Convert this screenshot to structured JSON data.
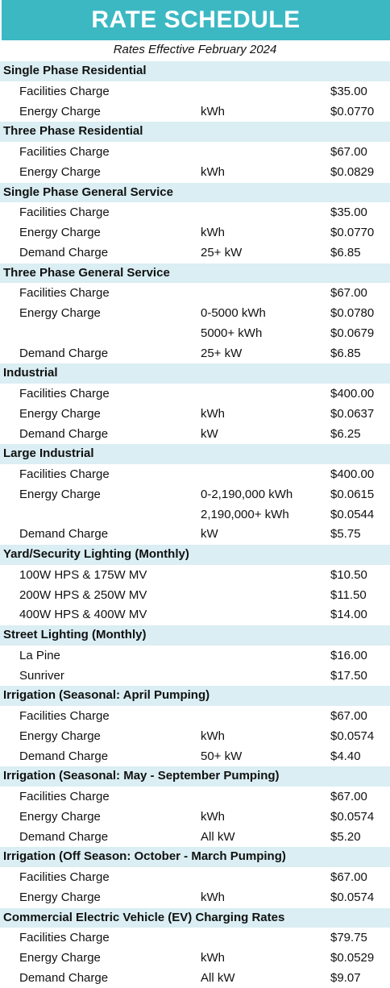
{
  "title": "RATE SCHEDULE",
  "subtitle": "Rates Effective February 2024",
  "sections": [
    {
      "name": "Single Phase Residential",
      "rows": [
        {
          "label": "Facilities Charge",
          "unit": "",
          "price": "$35.00"
        },
        {
          "label": "Energy Charge",
          "unit": "kWh",
          "price": "$0.0770"
        }
      ]
    },
    {
      "name": "Three Phase Residential",
      "rows": [
        {
          "label": "Facilities Charge",
          "unit": "",
          "price": "$67.00"
        },
        {
          "label": "Energy Charge",
          "unit": "kWh",
          "price": "$0.0829"
        }
      ]
    },
    {
      "name": "Single Phase General Service",
      "rows": [
        {
          "label": "Facilities Charge",
          "unit": "",
          "price": "$35.00"
        },
        {
          "label": "Energy Charge",
          "unit": "kWh",
          "price": "$0.0770"
        },
        {
          "label": "Demand Charge",
          "unit": "25+ kW",
          "price": "$6.85"
        }
      ]
    },
    {
      "name": "Three Phase General Service",
      "rows": [
        {
          "label": "Facilities Charge",
          "unit": "",
          "price": "$67.00"
        },
        {
          "label": "Energy Charge",
          "unit": "0-5000 kWh",
          "price": "$0.0780"
        },
        {
          "label": "",
          "unit": "5000+ kWh",
          "price": "$0.0679"
        },
        {
          "label": "Demand Charge",
          "unit": "25+ kW",
          "price": "$6.85"
        }
      ]
    },
    {
      "name": "Industrial",
      "rows": [
        {
          "label": "Facilities Charge",
          "unit": "",
          "price": "$400.00"
        },
        {
          "label": "Energy Charge",
          "unit": "kWh",
          "price": "$0.0637"
        },
        {
          "label": "Demand Charge",
          "unit": "kW",
          "price": "$6.25"
        }
      ]
    },
    {
      "name": "Large Industrial",
      "rows": [
        {
          "label": "Facilities Charge",
          "unit": "",
          "price": "$400.00"
        },
        {
          "label": "Energy Charge",
          "unit": "0-2,190,000 kWh",
          "price": "$0.0615"
        },
        {
          "label": "",
          "unit": "2,190,000+ kWh",
          "price": "$0.0544"
        },
        {
          "label": "Demand Charge",
          "unit": "kW",
          "price": "$5.75"
        }
      ]
    },
    {
      "name": "Yard/Security Lighting (Monthly)",
      "rows": [
        {
          "label": "100W HPS & 175W MV",
          "unit": "",
          "price": "$10.50"
        },
        {
          "label": "200W HPS & 250W MV",
          "unit": "",
          "price": "$11.50"
        },
        {
          "label": "400W HPS & 400W MV",
          "unit": "",
          "price": "$14.00"
        }
      ]
    },
    {
      "name": "Street Lighting (Monthly)",
      "rows": [
        {
          "label": "La Pine",
          "unit": "",
          "price": "$16.00"
        },
        {
          "label": "Sunriver",
          "unit": "",
          "price": "$17.50"
        }
      ]
    },
    {
      "name": "Irrigation (Seasonal: April Pumping)",
      "rows": [
        {
          "label": "Facilities Charge",
          "unit": "",
          "price": "$67.00"
        },
        {
          "label": "Energy Charge",
          "unit": "kWh",
          "price": "$0.0574"
        },
        {
          "label": "Demand Charge",
          "unit": "50+ kW",
          "price": "$4.40"
        }
      ]
    },
    {
      "name": "Irrigation (Seasonal: May - September Pumping)",
      "rows": [
        {
          "label": "Facilities Charge",
          "unit": "",
          "price": "$67.00"
        },
        {
          "label": "Energy Charge",
          "unit": "kWh",
          "price": "$0.0574"
        },
        {
          "label": "Demand Charge",
          "unit": "All kW",
          "price": "$5.20"
        }
      ]
    },
    {
      "name": "Irrigation (Off Season: October - March Pumping)",
      "rows": [
        {
          "label": "Facilities Charge",
          "unit": "",
          "price": "$67.00"
        },
        {
          "label": "Energy Charge",
          "unit": "kWh",
          "price": "$0.0574"
        }
      ]
    },
    {
      "name": "Commercial Electric Vehicle (EV) Charging Rates",
      "rows": [
        {
          "label": "Facilities Charge",
          "unit": "",
          "price": "$79.75"
        },
        {
          "label": "Energy Charge",
          "unit": "kWh",
          "price": "$0.0529"
        },
        {
          "label": "Demand Charge",
          "unit": "All kW",
          "price": "$9.07"
        }
      ]
    }
  ]
}
